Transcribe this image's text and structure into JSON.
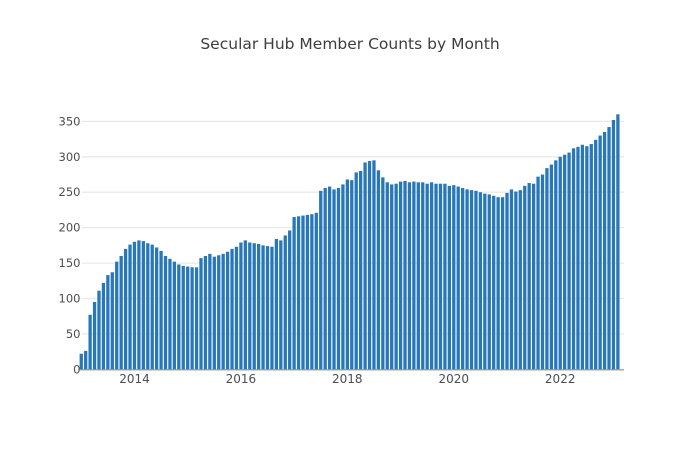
{
  "title": "Secular Hub Member Counts by Month",
  "colors": {
    "bar": "#2878b9",
    "grid": "#e9e9e9",
    "axis_line": "#8c8c8c",
    "tick_text": "#4d4d4d",
    "title_text": "#3d3d3d",
    "background": "#ffffff"
  },
  "chart_data": {
    "type": "bar",
    "title": "Secular Hub Member Counts by Month",
    "xlabel": "",
    "ylabel": "",
    "x_start": "2013-01",
    "x_end": "2023-02",
    "x_freq": "monthly",
    "n_points": 122,
    "values": [
      22,
      26,
      77,
      95,
      111,
      122,
      133,
      137,
      152,
      160,
      170,
      176,
      180,
      182,
      181,
      178,
      176,
      172,
      167,
      160,
      156,
      152,
      148,
      146,
      145,
      144,
      144,
      157,
      160,
      163,
      159,
      161,
      163,
      166,
      170,
      173,
      179,
      182,
      179,
      178,
      177,
      175,
      174,
      173,
      184,
      182,
      189,
      196,
      215,
      216,
      217,
      218,
      219,
      221,
      252,
      256,
      258,
      254,
      256,
      261,
      268,
      267,
      278,
      280,
      292,
      294,
      295,
      281,
      271,
      264,
      261,
      262,
      265,
      266,
      264,
      265,
      264,
      264,
      262,
      264,
      262,
      262,
      262,
      259,
      260,
      258,
      256,
      254,
      253,
      252,
      250,
      248,
      247,
      245,
      243,
      243,
      249,
      254,
      251,
      253,
      259,
      263,
      262,
      272,
      275,
      284,
      289,
      295,
      300,
      303,
      306,
      312,
      314,
      317,
      315,
      318,
      324,
      330,
      335,
      342,
      352,
      360
    ],
    "y_axis": {
      "ticks": [
        0,
        50,
        100,
        150,
        200,
        250,
        300,
        350
      ],
      "ylim": [
        0,
        380
      ]
    },
    "x_axis": {
      "tick_labels": [
        "2014",
        "2016",
        "2018",
        "2020",
        "2022"
      ],
      "tick_month_offsets": [
        12,
        36,
        60,
        84,
        108
      ]
    },
    "grid": true,
    "legend": false
  }
}
